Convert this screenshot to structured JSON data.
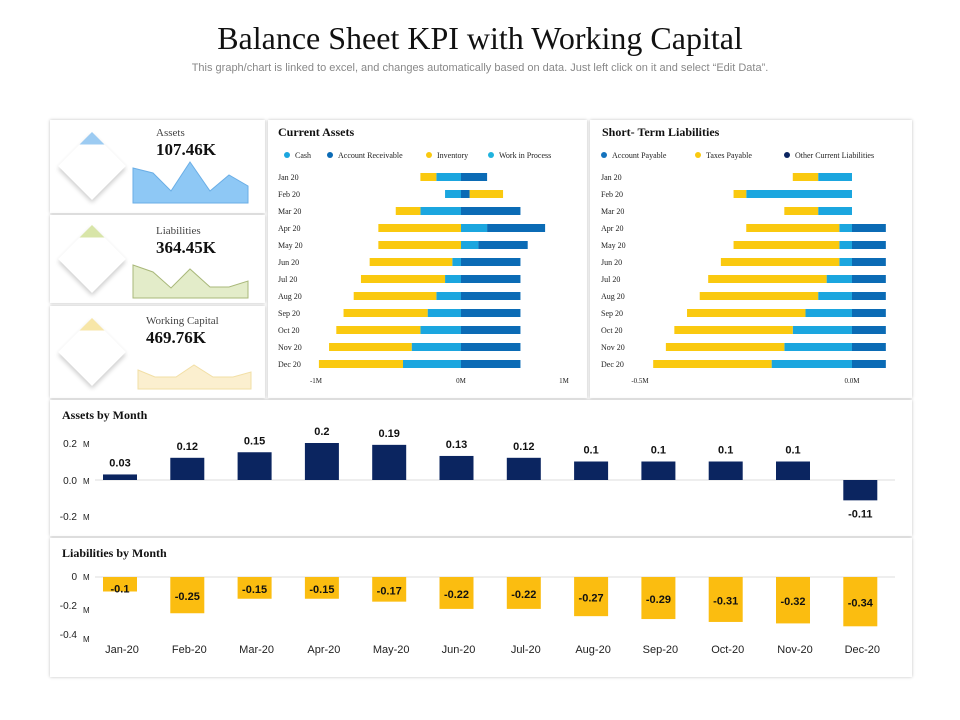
{
  "header": {
    "title": "Balance Sheet KPI with Working Capital",
    "subtitle": "This graph/chart is linked to excel, and changes automatically based on data. Just left click on it and select “Edit Data”."
  },
  "kpis": [
    {
      "label": "Assets",
      "value": "107.46K",
      "icon": "money-hand-icon",
      "color": "#7fbfee"
    },
    {
      "label": "Liabilities",
      "value": "364.45K",
      "icon": "money-tree-icon",
      "color": "#cddc9a"
    },
    {
      "label": "Working Capital",
      "value": "469.76K",
      "icon": "building-money-icon",
      "color": "#f6e3a0"
    }
  ],
  "chart_data": [
    {
      "type": "bar",
      "orientation": "horizontal",
      "stacked": true,
      "title": "Current Assets",
      "legend_position": "top",
      "categories": [
        "Jan 20",
        "Feb 20",
        "Mar 20",
        "Apr 20",
        "May 20",
        "Jun 20",
        "Jul 20",
        "Aug 20",
        "Sep 20",
        "Oct 20",
        "Nov 20",
        "Dec 20"
      ],
      "xticks": [
        "-1M",
        "0M",
        "1M"
      ],
      "xlim": [
        -1,
        1
      ],
      "unit": "M",
      "series": [
        {
          "name": "Cash",
          "color": "#1ba6df",
          "values": [
            -0.17,
            -0.11,
            -0.28,
            0.18,
            0.12,
            -0.06,
            -0.11,
            -0.17,
            -0.23,
            -0.28,
            -0.34,
            -0.4
          ]
        },
        {
          "name": "Account Receivable",
          "color": "#0b6bb5",
          "values": [
            0.18,
            0.06,
            0.41,
            0.4,
            0.34,
            0.41,
            0.41,
            0.41,
            0.41,
            0.41,
            0.41,
            0.41
          ]
        },
        {
          "name": "Inventory",
          "color": "#fac90f",
          "values": [
            -0.11,
            0.23,
            -0.17,
            -0.57,
            -0.57,
            -0.57,
            -0.58,
            -0.57,
            -0.58,
            -0.58,
            -0.57,
            -0.58
          ]
        },
        {
          "name": "Work in Process",
          "color": "#20b3de",
          "values": [
            0,
            0,
            0,
            0,
            0,
            0,
            0,
            0,
            0,
            0,
            0,
            0
          ]
        }
      ]
    },
    {
      "type": "bar",
      "orientation": "horizontal",
      "stacked": true,
      "title": "Short- Term Liabilities",
      "legend_position": "top",
      "categories": [
        "Jan 20",
        "Feb 20",
        "Mar 20",
        "Apr 20",
        "May 20",
        "Jun 20",
        "Jul 20",
        "Aug 20",
        "Sep 20",
        "Oct 20",
        "Nov 20",
        "Dec 20"
      ],
      "xticks": [
        "-0.5M",
        "0.0M"
      ],
      "xlim": [
        -0.55,
        0.1
      ],
      "unit": "M",
      "series": [
        {
          "name": "Account Payable",
          "color": "#1ba6df",
          "legend_color": "#1473bd",
          "values": [
            -0.08,
            -0.25,
            -0.08,
            -0.03,
            -0.03,
            -0.03,
            -0.06,
            -0.08,
            -0.11,
            -0.14,
            -0.16,
            -0.19
          ]
        },
        {
          "name": "Taxes Payable",
          "color": "#fac90f",
          "values": [
            -0.06,
            -0.03,
            -0.08,
            -0.22,
            -0.25,
            -0.28,
            -0.28,
            -0.28,
            -0.28,
            -0.28,
            -0.28,
            -0.28
          ]
        },
        {
          "name": "Other Current Liabilities",
          "color": "#0b6bb5",
          "legend_color": "#0b2560",
          "values": [
            0,
            0,
            0,
            0.08,
            0.08,
            0.08,
            0.08,
            0.08,
            0.08,
            0.08,
            0.08,
            0.08
          ]
        }
      ]
    },
    {
      "type": "bar",
      "title": "Assets by Month",
      "color": "#0b2560",
      "categories": [
        "Jan-20",
        "Feb-20",
        "Mar-20",
        "Apr-20",
        "May-20",
        "Jun-20",
        "Jul-20",
        "Aug-20",
        "Sep-20",
        "Oct-20",
        "Nov-20",
        "Dec-20"
      ],
      "values": [
        0.03,
        0.12,
        0.15,
        0.2,
        0.19,
        0.13,
        0.12,
        0.1,
        0.1,
        0.1,
        0.1,
        -0.11
      ],
      "yticks": [
        "0.2",
        "0.0",
        "-0.2"
      ],
      "yunit": "M",
      "ylim": [
        -0.2,
        0.2
      ]
    },
    {
      "type": "bar",
      "title": "Liabilities by Month",
      "color": "#fbbd10",
      "categories": [
        "Jan-20",
        "Feb-20",
        "Mar-20",
        "Apr-20",
        "May-20",
        "Jun-20",
        "Jul-20",
        "Aug-20",
        "Sep-20",
        "Oct-20",
        "Nov-20",
        "Dec-20"
      ],
      "values": [
        -0.1,
        -0.25,
        -0.15,
        -0.15,
        -0.17,
        -0.22,
        -0.22,
        -0.27,
        -0.29,
        -0.31,
        -0.32,
        -0.34
      ],
      "yticks": [
        "0",
        "-0.2",
        "-0.4"
      ],
      "yunit": "M",
      "ylim": [
        -0.4,
        0
      ]
    }
  ]
}
